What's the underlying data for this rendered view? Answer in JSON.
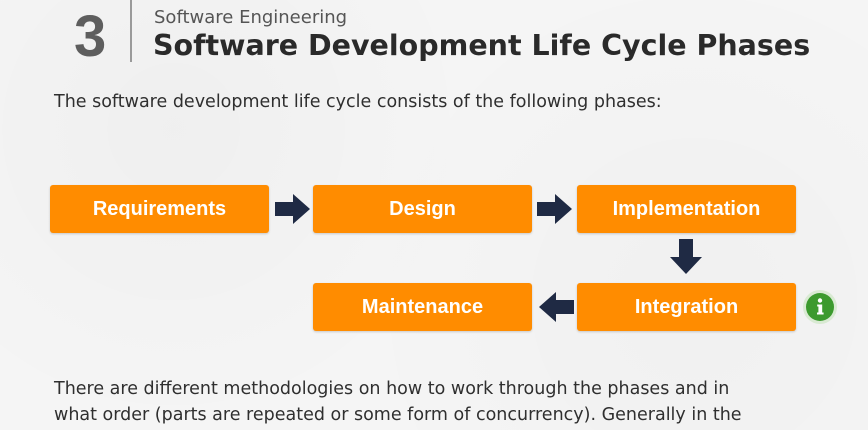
{
  "header": {
    "chapter_number": "3",
    "subtitle": "Software Engineering",
    "title": "Software Development Life Cycle Phases"
  },
  "intro_text": "The software development life cycle consists of the following phases:",
  "diagram": {
    "phases": [
      {
        "label": "Requirements"
      },
      {
        "label": "Design"
      },
      {
        "label": "Implementation"
      },
      {
        "label": "Integration"
      },
      {
        "label": "Maintenance"
      }
    ],
    "flow": [
      {
        "from": "Requirements",
        "to": "Design",
        "direction": "right"
      },
      {
        "from": "Design",
        "to": "Implementation",
        "direction": "right"
      },
      {
        "from": "Implementation",
        "to": "Integration",
        "direction": "down"
      },
      {
        "from": "Integration",
        "to": "Maintenance",
        "direction": "left"
      }
    ],
    "box_color": "#ff8c00",
    "arrow_color": "#1f2a44"
  },
  "info_badge": {
    "icon": "info-icon",
    "color": "#3c9a2e"
  },
  "body_text": {
    "line1": "There are different methodologies on how to work through the phases and in",
    "line2": "what order (parts are repeated or some form of concurrency). Generally in the"
  }
}
